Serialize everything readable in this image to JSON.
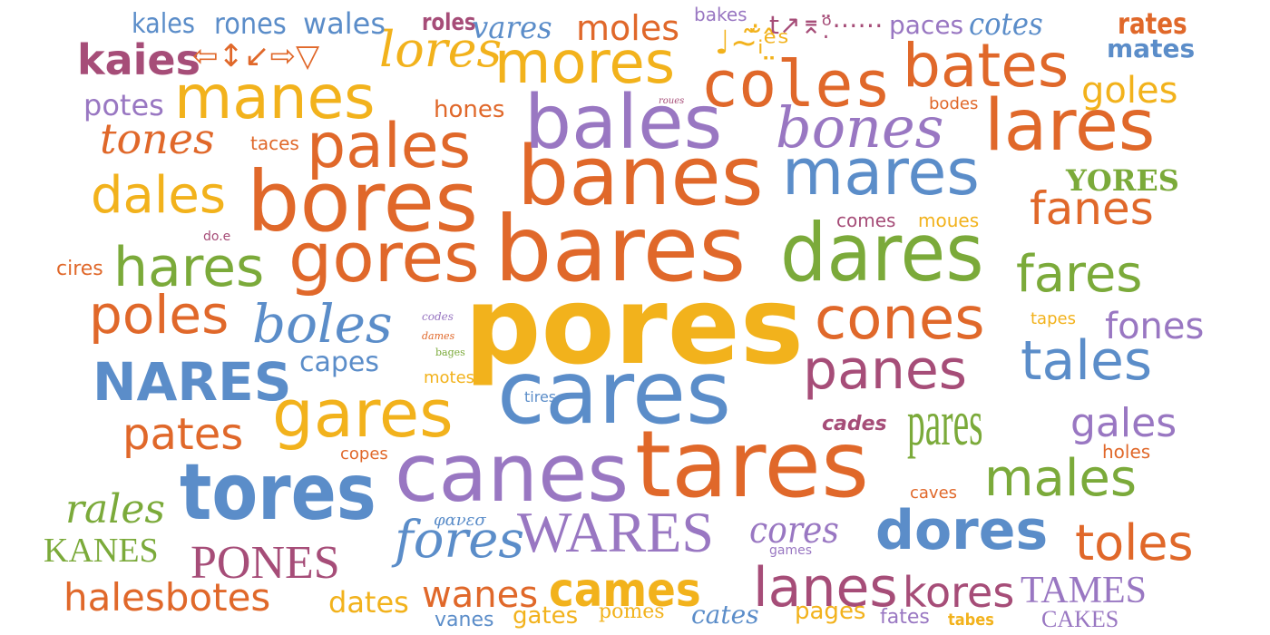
{
  "palette": {
    "orange": "#E0682A",
    "yellow": "#F2B21C",
    "purple": "#9977C2",
    "blue": "#5B8DC9",
    "green": "#7BAA3A",
    "rose": "#A64D78"
  },
  "words": [
    {
      "text": "pores",
      "color": "yellow"
    },
    {
      "text": "bares",
      "color": "orange"
    },
    {
      "text": "cares",
      "color": "blue"
    },
    {
      "text": "tares",
      "color": "orange"
    },
    {
      "text": "canes",
      "color": "purple"
    },
    {
      "text": "banes",
      "color": "orange"
    },
    {
      "text": "bales",
      "color": "purple"
    },
    {
      "text": "bores",
      "color": "orange"
    },
    {
      "text": "dares",
      "color": "green"
    },
    {
      "text": "mares",
      "color": "blue"
    },
    {
      "text": "lares",
      "color": "orange"
    },
    {
      "text": "bones",
      "color": "purple"
    },
    {
      "text": "coles",
      "color": "orange"
    },
    {
      "text": "mores",
      "color": "yellow"
    },
    {
      "text": "bates",
      "color": "orange"
    },
    {
      "text": "manes",
      "color": "yellow"
    },
    {
      "text": "pales",
      "color": "orange"
    },
    {
      "text": "gores",
      "color": "orange"
    },
    {
      "text": "hares",
      "color": "green"
    },
    {
      "text": "dales",
      "color": "yellow"
    },
    {
      "text": "tores",
      "color": "blue"
    },
    {
      "text": "gares",
      "color": "yellow"
    },
    {
      "text": "cones",
      "color": "orange"
    },
    {
      "text": "panes",
      "color": "rose"
    },
    {
      "text": "tales",
      "color": "blue"
    },
    {
      "text": "fares",
      "color": "green"
    },
    {
      "text": "pares",
      "color": "green"
    },
    {
      "text": "dores",
      "color": "blue"
    },
    {
      "text": "WARES",
      "color": "purple"
    },
    {
      "text": "lanes",
      "color": "rose"
    },
    {
      "text": "fores",
      "color": "blue"
    },
    {
      "text": "PONES",
      "color": "rose"
    },
    {
      "text": "cames",
      "color": "yellow"
    },
    {
      "text": "NARES",
      "color": "blue"
    },
    {
      "text": "poles",
      "color": "orange"
    },
    {
      "text": "boles",
      "color": "blue"
    },
    {
      "text": "pates",
      "color": "orange"
    },
    {
      "text": "males",
      "color": "green"
    },
    {
      "text": "toles",
      "color": "orange"
    },
    {
      "text": "gales",
      "color": "purple"
    },
    {
      "text": "fones",
      "color": "purple"
    },
    {
      "text": "fanes",
      "color": "orange"
    },
    {
      "text": "lores",
      "color": "yellow"
    },
    {
      "text": "kaies",
      "color": "rose"
    },
    {
      "text": "tones",
      "color": "orange"
    },
    {
      "text": "YORES",
      "color": "green"
    },
    {
      "text": "goles",
      "color": "yellow"
    },
    {
      "text": "kores",
      "color": "rose"
    },
    {
      "text": "TAMES",
      "color": "purple"
    },
    {
      "text": "halesbotes",
      "color": "orange"
    },
    {
      "text": "rales",
      "color": "green"
    },
    {
      "text": "KANES",
      "color": "green"
    },
    {
      "text": "dates",
      "color": "yellow"
    },
    {
      "text": "wanes",
      "color": "orange"
    },
    {
      "text": "cores",
      "color": "purple"
    },
    {
      "text": "capes",
      "color": "blue"
    },
    {
      "text": "potes",
      "color": "purple"
    },
    {
      "text": "hones",
      "color": "orange"
    },
    {
      "text": "mates",
      "color": "blue"
    },
    {
      "text": "rates",
      "color": "orange"
    },
    {
      "text": "cotes",
      "color": "blue"
    },
    {
      "text": "paces",
      "color": "purple"
    },
    {
      "text": "wales",
      "color": "blue"
    },
    {
      "text": "rones",
      "color": "blue"
    },
    {
      "text": "kales",
      "color": "blue"
    },
    {
      "text": "roles",
      "color": "rose"
    },
    {
      "text": "vares",
      "color": "blue"
    },
    {
      "text": "moles",
      "color": "orange"
    },
    {
      "text": "bakes",
      "color": "purple"
    },
    {
      "text": "⇦↕↙⇨▽",
      "color": "orange"
    },
    {
      "text": "♩~̃ᵢ̐ᵉ̤̂ˢ",
      "color": "yellow"
    },
    {
      "text": "t↗⌆ᵒ̣̈⋯⋯",
      "color": "rose"
    },
    {
      "text": "taces",
      "color": "orange"
    },
    {
      "text": "cires",
      "color": "orange"
    },
    {
      "text": "do.e",
      "color": "rose"
    },
    {
      "text": "comes",
      "color": "rose"
    },
    {
      "text": "moues",
      "color": "yellow"
    },
    {
      "text": "tapes",
      "color": "yellow"
    },
    {
      "text": "codes",
      "color": "purple"
    },
    {
      "text": "dames",
      "color": "orange"
    },
    {
      "text": "bages",
      "color": "green"
    },
    {
      "text": "motes",
      "color": "yellow"
    },
    {
      "text": "tires",
      "color": "blue"
    },
    {
      "text": "copes",
      "color": "orange"
    },
    {
      "text": "cades",
      "color": "rose"
    },
    {
      "text": "holes",
      "color": "orange"
    },
    {
      "text": "caves",
      "color": "orange"
    },
    {
      "text": "φανεσ",
      "color": "blue"
    },
    {
      "text": "games",
      "color": "purple"
    },
    {
      "text": "vanes",
      "color": "blue"
    },
    {
      "text": "gates",
      "color": "yellow"
    },
    {
      "text": "pomes",
      "color": "yellow"
    },
    {
      "text": "cates",
      "color": "blue"
    },
    {
      "text": "pages",
      "color": "yellow"
    },
    {
      "text": "fates",
      "color": "purple"
    },
    {
      "text": "tabes",
      "color": "yellow"
    },
    {
      "text": "CAKES",
      "color": "purple"
    },
    {
      "text": "roues",
      "color": "rose"
    },
    {
      "text": "bodes",
      "color": "orange"
    }
  ]
}
